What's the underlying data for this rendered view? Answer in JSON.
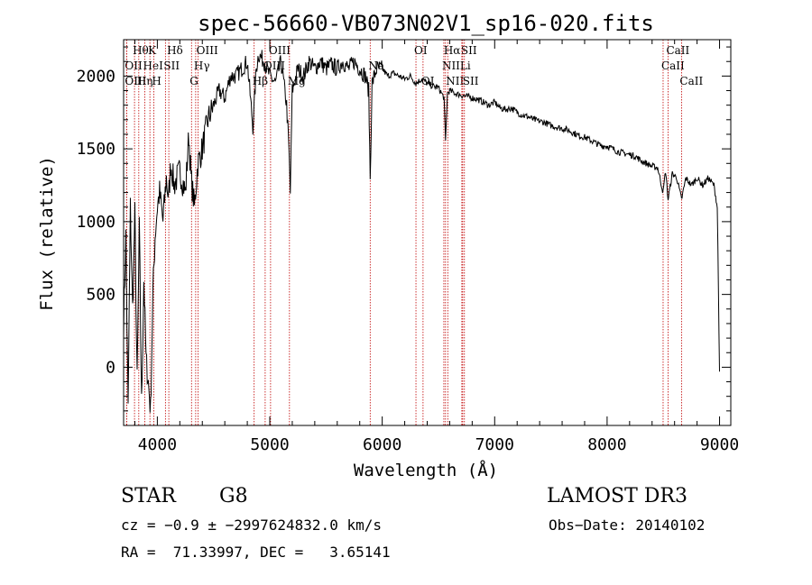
{
  "chart_data": {
    "type": "line",
    "title": "spec-56660-VB073N02V1_sp16-020.fits",
    "xlabel": "Wavelength (Å)",
    "ylabel": "Flux (relative)",
    "xlim": [
      3700,
      9100
    ],
    "ylim": [
      -400,
      2250
    ],
    "xticks": [
      4000,
      5000,
      6000,
      7000,
      8000,
      9000
    ],
    "yticks": [
      0,
      500,
      1000,
      1500,
      2000
    ],
    "spectrum_points": [
      [
        3700,
        300
      ],
      [
        3720,
        900
      ],
      [
        3740,
        -300
      ],
      [
        3760,
        1100
      ],
      [
        3780,
        400
      ],
      [
        3800,
        1050
      ],
      [
        3820,
        -100
      ],
      [
        3840,
        950
      ],
      [
        3860,
        -250
      ],
      [
        3880,
        600
      ],
      [
        3900,
        50
      ],
      [
        3920,
        -100
      ],
      [
        3940,
        -300
      ],
      [
        3960,
        500
      ],
      [
        3980,
        900
      ],
      [
        4000,
        1100
      ],
      [
        4020,
        1200
      ],
      [
        4050,
        1000
      ],
      [
        4080,
        1300
      ],
      [
        4100,
        1150
      ],
      [
        4120,
        1400
      ],
      [
        4150,
        1250
      ],
      [
        4200,
        1350
      ],
      [
        4250,
        1200
      ],
      [
        4280,
        1600
      ],
      [
        4300,
        1300
      ],
      [
        4330,
        1100
      ],
      [
        4360,
        1400
      ],
      [
        4400,
        1500
      ],
      [
        4450,
        1700
      ],
      [
        4500,
        1800
      ],
      [
        4550,
        1900
      ],
      [
        4600,
        1850
      ],
      [
        4650,
        2000
      ],
      [
        4700,
        2000
      ],
      [
        4750,
        2050
      ],
      [
        4800,
        2100
      ],
      [
        4850,
        1650
      ],
      [
        4880,
        2050
      ],
      [
        4900,
        2150
      ],
      [
        4950,
        2100
      ],
      [
        5000,
        2000
      ],
      [
        5050,
        1950
      ],
      [
        5100,
        2100
      ],
      [
        5150,
        1800
      ],
      [
        5170,
        1500
      ],
      [
        5183,
        1200
      ],
      [
        5200,
        1900
      ],
      [
        5250,
        2050
      ],
      [
        5300,
        2000
      ],
      [
        5350,
        2100
      ],
      [
        5400,
        2050
      ],
      [
        5450,
        2100
      ],
      [
        5500,
        2050
      ],
      [
        5550,
        2080
      ],
      [
        5600,
        2050
      ],
      [
        5650,
        2100
      ],
      [
        5700,
        2050
      ],
      [
        5750,
        2100
      ],
      [
        5800,
        2050
      ],
      [
        5850,
        2000
      ],
      [
        5880,
        1900
      ],
      [
        5893,
        1300
      ],
      [
        5910,
        1950
      ],
      [
        5950,
        2050
      ],
      [
        6000,
        2050
      ],
      [
        6050,
        2000
      ],
      [
        6100,
        2020
      ],
      [
        6150,
        2000
      ],
      [
        6200,
        1980
      ],
      [
        6250,
        2000
      ],
      [
        6300,
        1950
      ],
      [
        6350,
        1980
      ],
      [
        6400,
        1950
      ],
      [
        6450,
        1930
      ],
      [
        6500,
        1920
      ],
      [
        6550,
        1850
      ],
      [
        6563,
        1550
      ],
      [
        6580,
        1880
      ],
      [
        6600,
        1900
      ],
      [
        6650,
        1880
      ],
      [
        6700,
        1870
      ],
      [
        6750,
        1860
      ],
      [
        6800,
        1850
      ],
      [
        6850,
        1840
      ],
      [
        6900,
        1820
      ],
      [
        6950,
        1800
      ],
      [
        7000,
        1820
      ],
      [
        7050,
        1780
      ],
      [
        7100,
        1770
      ],
      [
        7150,
        1780
      ],
      [
        7200,
        1750
      ],
      [
        7250,
        1730
      ],
      [
        7300,
        1720
      ],
      [
        7350,
        1700
      ],
      [
        7400,
        1690
      ],
      [
        7450,
        1680
      ],
      [
        7500,
        1660
      ],
      [
        7550,
        1650
      ],
      [
        7600,
        1640
      ],
      [
        7650,
        1630
      ],
      [
        7700,
        1610
      ],
      [
        7750,
        1590
      ],
      [
        7800,
        1580
      ],
      [
        7850,
        1560
      ],
      [
        7900,
        1540
      ],
      [
        7950,
        1520
      ],
      [
        8000,
        1520
      ],
      [
        8050,
        1500
      ],
      [
        8100,
        1480
      ],
      [
        8150,
        1470
      ],
      [
        8200,
        1460
      ],
      [
        8250,
        1450
      ],
      [
        8300,
        1420
      ],
      [
        8350,
        1400
      ],
      [
        8400,
        1380
      ],
      [
        8450,
        1370
      ],
      [
        8498,
        1200
      ],
      [
        8520,
        1350
      ],
      [
        8542,
        1150
      ],
      [
        8580,
        1330
      ],
      [
        8620,
        1300
      ],
      [
        8662,
        1150
      ],
      [
        8700,
        1300
      ],
      [
        8750,
        1250
      ],
      [
        8800,
        1300
      ],
      [
        8850,
        1250
      ],
      [
        8900,
        1300
      ],
      [
        8950,
        1250
      ],
      [
        8980,
        1100
      ],
      [
        9000,
        -30
      ]
    ],
    "lines": [
      {
        "label": "Hθ",
        "x": 3797,
        "row": 0
      },
      {
        "label": "OII",
        "x": 3727,
        "row": 1
      },
      {
        "label": "OIII",
        "x": 3727,
        "row": 2
      },
      {
        "label": "K",
        "x": 3934,
        "row": 0
      },
      {
        "label": "HeI",
        "x": 3889,
        "row": 1
      },
      {
        "label": "Hη",
        "x": 3835,
        "row": 2
      },
      {
        "label": "Hδ",
        "x": 4102,
        "row": 0
      },
      {
        "label": "SII",
        "x": 4072,
        "row": 1
      },
      {
        "label": "H",
        "x": 3968,
        "row": 2
      },
      {
        "label": "OIII",
        "x": 4363,
        "row": 0
      },
      {
        "label": "Hγ",
        "x": 4341,
        "row": 1
      },
      {
        "label": "G",
        "x": 4304,
        "row": 2
      },
      {
        "label": "OIII",
        "x": 5007,
        "row": 0
      },
      {
        "label": "OIII",
        "x": 4959,
        "row": 1
      },
      {
        "label": "Hβ",
        "x": 4861,
        "row": 2
      },
      {
        "label": "Mg",
        "x": 5175,
        "row": 2
      },
      {
        "label": "Na",
        "x": 5893,
        "row": 1
      },
      {
        "label": "OI",
        "x": 6300,
        "row": 0
      },
      {
        "label": "OI",
        "x": 6363,
        "row": 2
      },
      {
        "label": "Hα",
        "x": 6563,
        "row": 0
      },
      {
        "label": "NII",
        "x": 6548,
        "row": 1
      },
      {
        "label": "NII",
        "x": 6583,
        "row": 2
      },
      {
        "label": "SII",
        "x": 6716,
        "row": 0
      },
      {
        "label": "Li",
        "x": 6708,
        "row": 1
      },
      {
        "label": "SII",
        "x": 6731,
        "row": 2
      },
      {
        "label": "CaII",
        "x": 8542,
        "row": 0
      },
      {
        "label": "CaII",
        "x": 8498,
        "row": 1
      },
      {
        "label": "CaII",
        "x": 8662,
        "row": 2
      }
    ]
  },
  "info": {
    "class": "STAR",
    "subclass": "G8",
    "survey": "LAMOST DR3",
    "cz": "cz = −0.9 ± −2997624832.0 km/s",
    "obs_date": "Obs−Date: 20140102",
    "coords": "RA =  71.33997, DEC =   3.65141"
  }
}
